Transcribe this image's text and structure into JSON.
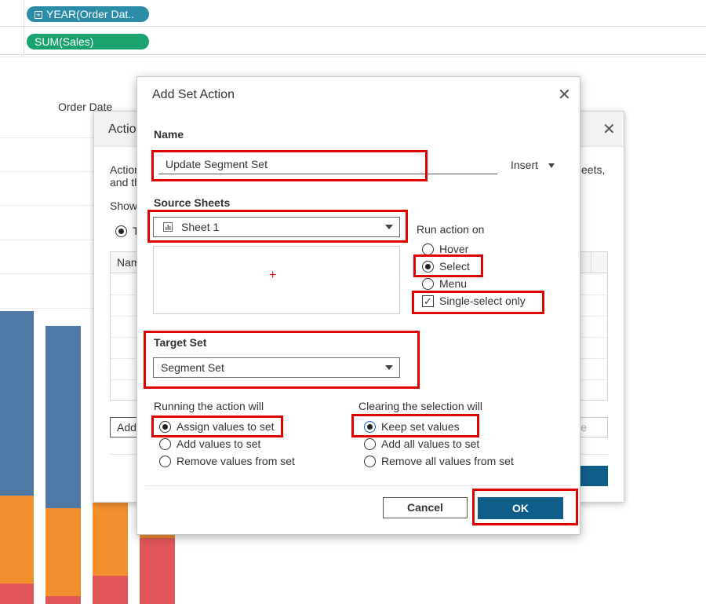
{
  "shelves": {
    "columns_pill": "YEAR(Order Dat..",
    "rows_pill": "SUM(Sales)"
  },
  "chart": {
    "header_label": "Order Date",
    "colors": {
      "blue": "#4e79a7",
      "orange": "#f28e2b",
      "red": "#e15759"
    }
  },
  "background_dialog": {
    "title_fragment": "Actio",
    "desc_line1": "Action",
    "desc_line2": "and th",
    "desc_right": "eets,",
    "show_label": "Show",
    "radio_fragment": "T",
    "table_header": "Nam",
    "add_button": "Add",
    "disabled_button_fragment": "e"
  },
  "dialog": {
    "title": "Add Set Action",
    "name_label": "Name",
    "name_value": "Update Segment Set",
    "insert_label": "Insert",
    "source_sheets_label": "Source Sheets",
    "source_sheet_selected": "Sheet 1",
    "run_action_on_label": "Run action on",
    "run_options": [
      "Hover",
      "Select",
      "Menu"
    ],
    "run_selected": "Select",
    "single_select_label": "Single-select only",
    "single_select_checked": true,
    "target_set_label": "Target Set",
    "target_set_selected": "Segment Set",
    "running_label": "Running the action will",
    "running_options": [
      "Assign values to set",
      "Add values to set",
      "Remove values from set"
    ],
    "running_selected": "Assign values to set",
    "clearing_label": "Clearing the selection will",
    "clearing_options": [
      "Keep set values",
      "Add all values to set",
      "Remove all values from set"
    ],
    "clearing_selected": "Keep set values",
    "cancel_label": "Cancel",
    "ok_label": "OK",
    "accent": "#0f5e8a",
    "highlight": "#e00000"
  }
}
